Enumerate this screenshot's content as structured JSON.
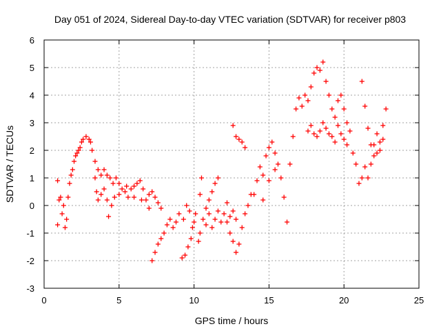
{
  "chart_data": {
    "type": "scatter",
    "title": "Day 051 of 2024, Sidereal Day-to-day VTEC variation (SDTVAR) for receiver p803",
    "xlabel": "GPS time / hours",
    "ylabel": "SDTVAR / TECUs",
    "xlim": [
      0,
      25
    ],
    "ylim": [
      -3,
      6
    ],
    "xticks": [
      "0",
      "5",
      "10",
      "15",
      "20",
      "25"
    ],
    "yticks": [
      "-3",
      "-2",
      "-1",
      "0",
      "1",
      "2",
      "3",
      "4",
      "5",
      "6"
    ],
    "grid": true,
    "marker": "+",
    "series": [
      {
        "name": "SDTVAR",
        "color": "#ff0000",
        "points": [
          [
            0.9,
            -0.7
          ],
          [
            0.9,
            0.9
          ],
          [
            1.0,
            0.2
          ],
          [
            1.1,
            0.3
          ],
          [
            1.2,
            -0.3
          ],
          [
            1.3,
            0.0
          ],
          [
            1.4,
            -0.8
          ],
          [
            1.5,
            -0.5
          ],
          [
            1.6,
            0.3
          ],
          [
            1.7,
            0.8
          ],
          [
            1.8,
            1.1
          ],
          [
            1.9,
            1.3
          ],
          [
            2.0,
            1.6
          ],
          [
            2.1,
            1.8
          ],
          [
            2.2,
            1.9
          ],
          [
            2.3,
            2.0
          ],
          [
            2.4,
            2.1
          ],
          [
            2.5,
            2.3
          ],
          [
            2.6,
            2.4
          ],
          [
            2.8,
            2.5
          ],
          [
            3.0,
            2.4
          ],
          [
            3.1,
            2.3
          ],
          [
            3.2,
            2.0
          ],
          [
            3.4,
            1.6
          ],
          [
            3.6,
            1.3
          ],
          [
            3.8,
            1.1
          ],
          [
            4.0,
            1.3
          ],
          [
            4.2,
            1.1
          ],
          [
            4.4,
            1.0
          ],
          [
            4.6,
            0.8
          ],
          [
            4.8,
            1.0
          ],
          [
            5.0,
            0.8
          ],
          [
            5.2,
            0.6
          ],
          [
            5.4,
            0.5
          ],
          [
            5.6,
            0.3
          ],
          [
            5.8,
            0.6
          ],
          [
            6.0,
            0.7
          ],
          [
            6.2,
            0.8
          ],
          [
            6.4,
            0.9
          ],
          [
            6.6,
            0.6
          ],
          [
            6.8,
            0.2
          ],
          [
            7.0,
            0.4
          ],
          [
            7.2,
            0.5
          ],
          [
            7.4,
            0.3
          ],
          [
            7.6,
            0.1
          ],
          [
            7.8,
            -0.1
          ],
          [
            3.4,
            1.0
          ],
          [
            3.5,
            0.5
          ],
          [
            3.6,
            0.2
          ],
          [
            3.8,
            0.4
          ],
          [
            4.0,
            0.6
          ],
          [
            4.2,
            0.2
          ],
          [
            4.3,
            -0.4
          ],
          [
            4.5,
            0.0
          ],
          [
            4.7,
            0.3
          ],
          [
            5.0,
            0.4
          ],
          [
            5.5,
            0.7
          ],
          [
            6.0,
            0.3
          ],
          [
            6.5,
            0.2
          ],
          [
            7.0,
            -0.1
          ],
          [
            7.2,
            -2.0
          ],
          [
            7.4,
            -1.7
          ],
          [
            7.6,
            -1.4
          ],
          [
            7.8,
            -1.2
          ],
          [
            8.0,
            -1.0
          ],
          [
            8.2,
            -0.7
          ],
          [
            8.4,
            -0.5
          ],
          [
            8.6,
            -0.8
          ],
          [
            8.8,
            -0.6
          ],
          [
            9.0,
            -0.3
          ],
          [
            9.2,
            -1.9
          ],
          [
            9.4,
            -1.8
          ],
          [
            9.6,
            -1.5
          ],
          [
            9.8,
            -1.2
          ],
          [
            10.0,
            -0.6
          ],
          [
            10.1,
            -0.3
          ],
          [
            9.3,
            -0.5
          ],
          [
            9.5,
            0.0
          ],
          [
            9.7,
            -0.2
          ],
          [
            9.9,
            -0.8
          ],
          [
            10.3,
            -1.3
          ],
          [
            10.4,
            -1.0
          ],
          [
            10.6,
            -0.5
          ],
          [
            10.8,
            -0.1
          ],
          [
            11.0,
            0.2
          ],
          [
            11.2,
            0.5
          ],
          [
            11.4,
            0.8
          ],
          [
            11.6,
            1.0
          ],
          [
            10.4,
            0.4
          ],
          [
            10.5,
            1.0
          ],
          [
            10.8,
            -0.7
          ],
          [
            11.0,
            -0.3
          ],
          [
            11.2,
            -0.8
          ],
          [
            11.4,
            -0.5
          ],
          [
            11.6,
            -0.2
          ],
          [
            11.8,
            -0.6
          ],
          [
            12.0,
            -0.3
          ],
          [
            12.2,
            -0.6
          ],
          [
            12.4,
            -1.0
          ],
          [
            12.6,
            -1.3
          ],
          [
            12.8,
            -1.7
          ],
          [
            13.0,
            -1.4
          ],
          [
            13.2,
            -0.8
          ],
          [
            13.4,
            -0.3
          ],
          [
            13.6,
            0.0
          ],
          [
            13.8,
            0.4
          ],
          [
            12.2,
            0.1
          ],
          [
            12.4,
            -0.4
          ],
          [
            12.6,
            -0.2
          ],
          [
            12.8,
            -0.5
          ],
          [
            12.6,
            2.9
          ],
          [
            12.8,
            2.5
          ],
          [
            13.0,
            2.4
          ],
          [
            13.2,
            2.3
          ],
          [
            13.4,
            2.1
          ],
          [
            14.0,
            0.4
          ],
          [
            14.2,
            0.9
          ],
          [
            14.4,
            1.4
          ],
          [
            14.6,
            1.1
          ],
          [
            14.8,
            1.8
          ],
          [
            15.0,
            2.1
          ],
          [
            15.2,
            2.3
          ],
          [
            15.4,
            1.9
          ],
          [
            15.6,
            1.5
          ],
          [
            15.8,
            1.0
          ],
          [
            16.0,
            0.3
          ],
          [
            16.2,
            -0.6
          ],
          [
            14.6,
            0.2
          ],
          [
            15.0,
            0.9
          ],
          [
            15.4,
            1.3
          ],
          [
            16.4,
            1.5
          ],
          [
            16.6,
            2.5
          ],
          [
            16.8,
            3.5
          ],
          [
            17.0,
            3.9
          ],
          [
            17.2,
            3.6
          ],
          [
            17.4,
            4.0
          ],
          [
            17.6,
            3.8
          ],
          [
            17.8,
            4.3
          ],
          [
            18.0,
            4.8
          ],
          [
            18.2,
            5.0
          ],
          [
            18.4,
            4.9
          ],
          [
            18.6,
            5.2
          ],
          [
            18.8,
            4.5
          ],
          [
            19.0,
            4.0
          ],
          [
            19.2,
            3.5
          ],
          [
            19.4,
            3.2
          ],
          [
            19.6,
            2.9
          ],
          [
            19.8,
            2.6
          ],
          [
            20.0,
            2.4
          ],
          [
            20.2,
            2.2
          ],
          [
            17.6,
            2.7
          ],
          [
            17.8,
            2.9
          ],
          [
            18.0,
            2.6
          ],
          [
            18.2,
            2.5
          ],
          [
            18.4,
            2.7
          ],
          [
            18.6,
            3.0
          ],
          [
            18.8,
            2.8
          ],
          [
            19.0,
            2.6
          ],
          [
            19.2,
            2.5
          ],
          [
            19.4,
            2.3
          ],
          [
            19.6,
            3.8
          ],
          [
            19.8,
            4.0
          ],
          [
            20.0,
            3.5
          ],
          [
            20.2,
            3.0
          ],
          [
            20.4,
            2.7
          ],
          [
            20.6,
            1.9
          ],
          [
            20.8,
            1.5
          ],
          [
            21.0,
            0.8
          ],
          [
            21.2,
            1.0
          ],
          [
            21.4,
            1.4
          ],
          [
            21.2,
            4.5
          ],
          [
            21.4,
            3.6
          ],
          [
            21.6,
            2.8
          ],
          [
            21.8,
            2.2
          ],
          [
            22.0,
            1.8
          ],
          [
            22.2,
            1.9
          ],
          [
            22.4,
            2.3
          ],
          [
            22.6,
            2.9
          ],
          [
            22.8,
            3.5
          ],
          [
            21.6,
            1.0
          ],
          [
            21.8,
            1.5
          ],
          [
            22.0,
            2.2
          ],
          [
            22.2,
            2.6
          ],
          [
            22.4,
            2.0
          ],
          [
            22.6,
            2.4
          ]
        ]
      }
    ]
  }
}
